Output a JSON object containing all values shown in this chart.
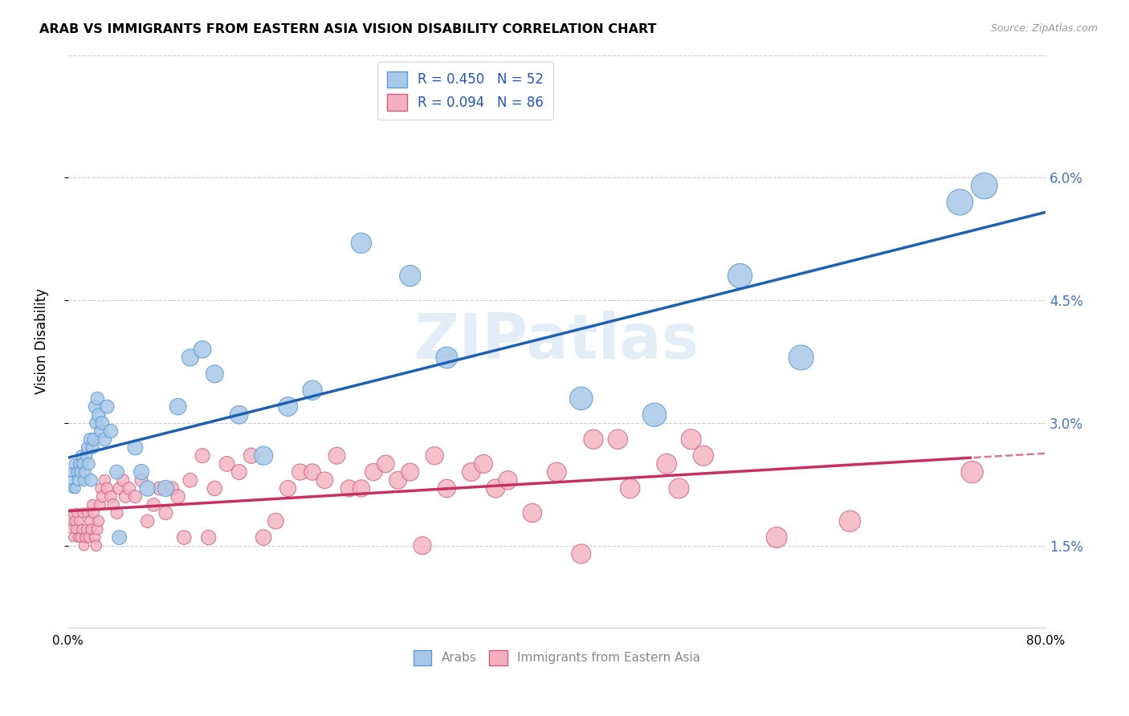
{
  "title": "ARAB VS IMMIGRANTS FROM EASTERN ASIA VISION DISABILITY CORRELATION CHART",
  "source": "Source: ZipAtlas.com",
  "ylabel": "Vision Disability",
  "xlim": [
    0.0,
    0.8
  ],
  "ylim": [
    0.005,
    0.075
  ],
  "ytick_vals": [
    0.015,
    0.03,
    0.045,
    0.06
  ],
  "ytick_labels": [
    "1.5%",
    "3.0%",
    "4.5%",
    "6.0%"
  ],
  "xtick_vals": [
    0.0,
    0.1,
    0.2,
    0.3,
    0.4,
    0.5,
    0.6,
    0.7,
    0.8
  ],
  "xtick_labels": [
    "0.0%",
    "",
    "",
    "",
    "",
    "",
    "",
    "",
    "80.0%"
  ],
  "arab_color": "#a8c8e8",
  "arab_edge_color": "#5b9bd5",
  "immigrant_color": "#f4b0c0",
  "immigrant_edge_color": "#d06080",
  "trend_arab_color": "#2060b0",
  "trend_immigrant_color": "#c83060",
  "watermark": "ZIPatlas",
  "arab_R": 0.45,
  "arab_N": 52,
  "immigrant_R": 0.094,
  "immigrant_N": 86,
  "arab_points": [
    [
      0.002,
      0.023
    ],
    [
      0.003,
      0.024
    ],
    [
      0.004,
      0.022
    ],
    [
      0.005,
      0.025
    ],
    [
      0.006,
      0.022
    ],
    [
      0.007,
      0.024
    ],
    [
      0.008,
      0.023
    ],
    [
      0.009,
      0.025
    ],
    [
      0.01,
      0.024
    ],
    [
      0.011,
      0.026
    ],
    [
      0.012,
      0.025
    ],
    [
      0.013,
      0.023
    ],
    [
      0.014,
      0.024
    ],
    [
      0.015,
      0.026
    ],
    [
      0.016,
      0.027
    ],
    [
      0.017,
      0.025
    ],
    [
      0.018,
      0.028
    ],
    [
      0.019,
      0.023
    ],
    [
      0.02,
      0.027
    ],
    [
      0.021,
      0.028
    ],
    [
      0.022,
      0.032
    ],
    [
      0.023,
      0.03
    ],
    [
      0.024,
      0.033
    ],
    [
      0.025,
      0.031
    ],
    [
      0.027,
      0.029
    ],
    [
      0.028,
      0.03
    ],
    [
      0.03,
      0.028
    ],
    [
      0.032,
      0.032
    ],
    [
      0.035,
      0.029
    ],
    [
      0.04,
      0.024
    ],
    [
      0.042,
      0.016
    ],
    [
      0.055,
      0.027
    ],
    [
      0.06,
      0.024
    ],
    [
      0.065,
      0.022
    ],
    [
      0.08,
      0.022
    ],
    [
      0.09,
      0.032
    ],
    [
      0.1,
      0.038
    ],
    [
      0.11,
      0.039
    ],
    [
      0.12,
      0.036
    ],
    [
      0.14,
      0.031
    ],
    [
      0.16,
      0.026
    ],
    [
      0.18,
      0.032
    ],
    [
      0.2,
      0.034
    ],
    [
      0.24,
      0.052
    ],
    [
      0.28,
      0.048
    ],
    [
      0.31,
      0.038
    ],
    [
      0.42,
      0.033
    ],
    [
      0.48,
      0.031
    ],
    [
      0.55,
      0.048
    ],
    [
      0.6,
      0.038
    ],
    [
      0.73,
      0.057
    ],
    [
      0.75,
      0.059
    ]
  ],
  "immigrant_points": [
    [
      0.001,
      0.018
    ],
    [
      0.002,
      0.017
    ],
    [
      0.003,
      0.019
    ],
    [
      0.004,
      0.016
    ],
    [
      0.005,
      0.018
    ],
    [
      0.006,
      0.017
    ],
    [
      0.007,
      0.019
    ],
    [
      0.008,
      0.016
    ],
    [
      0.009,
      0.018
    ],
    [
      0.01,
      0.016
    ],
    [
      0.011,
      0.017
    ],
    [
      0.012,
      0.019
    ],
    [
      0.013,
      0.015
    ],
    [
      0.014,
      0.016
    ],
    [
      0.015,
      0.017
    ],
    [
      0.016,
      0.019
    ],
    [
      0.017,
      0.016
    ],
    [
      0.018,
      0.018
    ],
    [
      0.019,
      0.017
    ],
    [
      0.02,
      0.02
    ],
    [
      0.021,
      0.019
    ],
    [
      0.022,
      0.016
    ],
    [
      0.023,
      0.015
    ],
    [
      0.024,
      0.017
    ],
    [
      0.025,
      0.018
    ],
    [
      0.026,
      0.02
    ],
    [
      0.027,
      0.022
    ],
    [
      0.028,
      0.021
    ],
    [
      0.03,
      0.023
    ],
    [
      0.032,
      0.022
    ],
    [
      0.035,
      0.021
    ],
    [
      0.037,
      0.02
    ],
    [
      0.04,
      0.019
    ],
    [
      0.042,
      0.022
    ],
    [
      0.045,
      0.023
    ],
    [
      0.047,
      0.021
    ],
    [
      0.05,
      0.022
    ],
    [
      0.055,
      0.021
    ],
    [
      0.06,
      0.023
    ],
    [
      0.065,
      0.018
    ],
    [
      0.07,
      0.02
    ],
    [
      0.075,
      0.022
    ],
    [
      0.08,
      0.019
    ],
    [
      0.085,
      0.022
    ],
    [
      0.09,
      0.021
    ],
    [
      0.095,
      0.016
    ],
    [
      0.1,
      0.023
    ],
    [
      0.11,
      0.026
    ],
    [
      0.115,
      0.016
    ],
    [
      0.12,
      0.022
    ],
    [
      0.13,
      0.025
    ],
    [
      0.14,
      0.024
    ],
    [
      0.15,
      0.026
    ],
    [
      0.16,
      0.016
    ],
    [
      0.17,
      0.018
    ],
    [
      0.18,
      0.022
    ],
    [
      0.19,
      0.024
    ],
    [
      0.2,
      0.024
    ],
    [
      0.21,
      0.023
    ],
    [
      0.22,
      0.026
    ],
    [
      0.23,
      0.022
    ],
    [
      0.24,
      0.022
    ],
    [
      0.25,
      0.024
    ],
    [
      0.26,
      0.025
    ],
    [
      0.27,
      0.023
    ],
    [
      0.28,
      0.024
    ],
    [
      0.29,
      0.015
    ],
    [
      0.3,
      0.026
    ],
    [
      0.31,
      0.022
    ],
    [
      0.33,
      0.024
    ],
    [
      0.34,
      0.025
    ],
    [
      0.35,
      0.022
    ],
    [
      0.36,
      0.023
    ],
    [
      0.38,
      0.019
    ],
    [
      0.4,
      0.024
    ],
    [
      0.42,
      0.014
    ],
    [
      0.43,
      0.028
    ],
    [
      0.45,
      0.028
    ],
    [
      0.46,
      0.022
    ],
    [
      0.49,
      0.025
    ],
    [
      0.5,
      0.022
    ],
    [
      0.51,
      0.028
    ],
    [
      0.52,
      0.026
    ],
    [
      0.58,
      0.016
    ],
    [
      0.64,
      0.018
    ],
    [
      0.74,
      0.024
    ]
  ]
}
